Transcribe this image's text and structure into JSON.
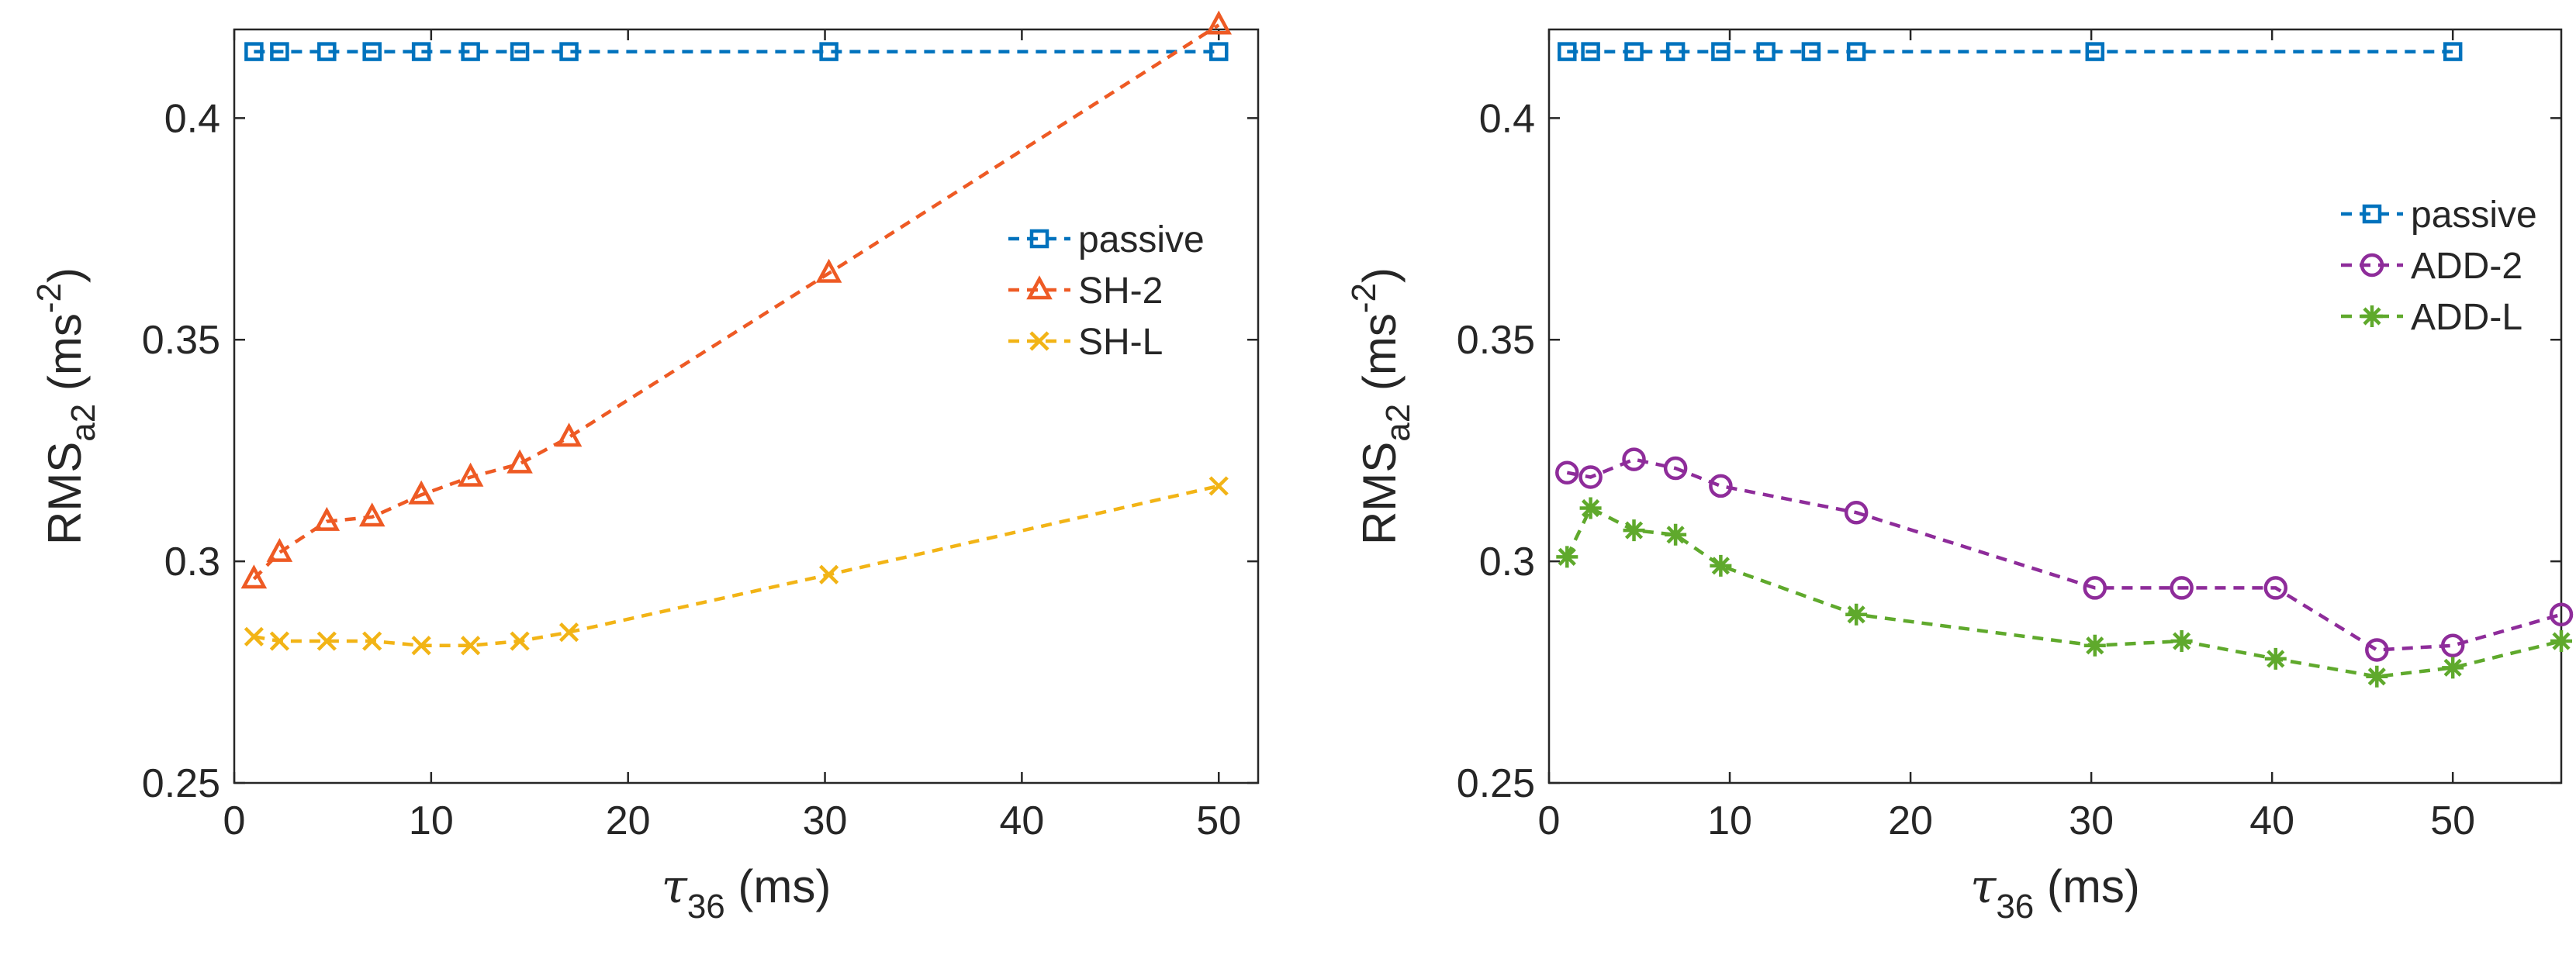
{
  "chart_data": [
    {
      "type": "line",
      "panel": "left",
      "xlabel": "τ36 (ms)",
      "xlabel_symbol": "τ",
      "xlabel_sub": "36",
      "xlabel_unit": " (ms)",
      "ylabel": "RMSa2 (ms-2)",
      "ylabel_main": "RMS",
      "ylabel_sub": "a2",
      "ylabel_unit_open": " (ms",
      "ylabel_sup": "-2",
      "ylabel_unit_close": ")",
      "xlim": [
        0,
        52
      ],
      "ylim": [
        0.25,
        0.42
      ],
      "xticks": [
        "0",
        "10",
        "20",
        "30",
        "40",
        "50"
      ],
      "yticks": [
        "0.25",
        "0.3",
        "0.35",
        "0.4"
      ],
      "legend_position": "right-middle",
      "series": [
        {
          "name": "passive",
          "color": "#0072BD",
          "marker": "square",
          "x": [
            1.0,
            2.3,
            4.7,
            7.0,
            9.5,
            12.0,
            14.5,
            17.0,
            30.2,
            50.0
          ],
          "y": [
            0.415,
            0.415,
            0.415,
            0.415,
            0.415,
            0.415,
            0.415,
            0.415,
            0.415,
            0.415
          ]
        },
        {
          "name": "SH-2",
          "color": "#EE5A24",
          "marker": "triangle",
          "x": [
            1.0,
            2.3,
            4.7,
            7.0,
            9.5,
            12.0,
            14.5,
            17.0,
            30.2,
            50.0
          ],
          "y": [
            0.296,
            0.302,
            0.309,
            0.31,
            0.315,
            0.319,
            0.322,
            0.328,
            0.365,
            0.421
          ]
        },
        {
          "name": "SH-L",
          "color": "#F2B416",
          "marker": "x",
          "x": [
            1.0,
            2.3,
            4.7,
            7.0,
            9.5,
            12.0,
            14.5,
            17.0,
            30.2,
            50.0
          ],
          "y": [
            0.283,
            0.282,
            0.282,
            0.282,
            0.281,
            0.281,
            0.282,
            0.284,
            0.297,
            0.317
          ]
        }
      ]
    },
    {
      "type": "line",
      "panel": "right",
      "xlabel": "τ36 (ms)",
      "xlabel_symbol": "τ",
      "xlabel_sub": "36",
      "xlabel_unit": " (ms)",
      "ylabel": "RMSa2 (ms-2)",
      "ylabel_main": "RMS",
      "ylabel_sub": "a2",
      "ylabel_unit_open": " (ms",
      "ylabel_sup": "-2",
      "ylabel_unit_close": ")",
      "xlim": [
        0,
        56
      ],
      "ylim": [
        0.25,
        0.42
      ],
      "xticks": [
        "0",
        "10",
        "20",
        "30",
        "40",
        "50"
      ],
      "yticks": [
        "0.25",
        "0.3",
        "0.35",
        "0.4"
      ],
      "legend_position": "top-right",
      "series": [
        {
          "name": "passive",
          "color": "#0072BD",
          "marker": "square",
          "x": [
            1.0,
            2.3,
            4.7,
            7.0,
            9.5,
            12.0,
            14.5,
            17.0,
            30.2,
            50.0
          ],
          "y": [
            0.415,
            0.415,
            0.415,
            0.415,
            0.415,
            0.415,
            0.415,
            0.415,
            0.415,
            0.415
          ]
        },
        {
          "name": "ADD-2",
          "color": "#8E2C9A",
          "marker": "circle",
          "x": [
            1.0,
            2.3,
            4.7,
            7.0,
            9.5,
            17.0,
            30.2,
            35.0,
            40.2,
            45.8,
            50.0,
            56.0
          ],
          "y": [
            0.32,
            0.319,
            0.323,
            0.321,
            0.317,
            0.311,
            0.294,
            0.294,
            0.294,
            0.28,
            0.281,
            0.288
          ]
        },
        {
          "name": "ADD-L",
          "color": "#5FA92C",
          "marker": "star",
          "x": [
            1.0,
            2.3,
            4.7,
            7.0,
            9.5,
            17.0,
            30.2,
            35.0,
            40.2,
            45.8,
            50.0,
            56.0
          ],
          "y": [
            0.301,
            0.312,
            0.307,
            0.306,
            0.299,
            0.288,
            0.281,
            0.282,
            0.278,
            0.274,
            0.276,
            0.282
          ]
        }
      ]
    }
  ]
}
